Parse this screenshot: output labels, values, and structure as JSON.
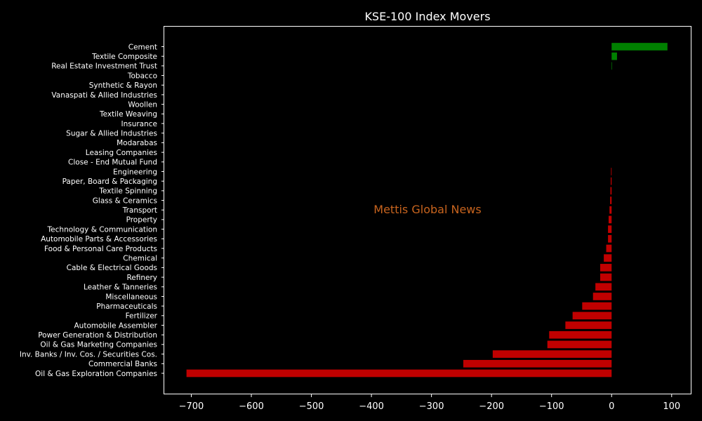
{
  "chart_data": {
    "type": "bar",
    "orientation": "horizontal",
    "title": "KSE-100 Index Movers",
    "xlabel": "",
    "ylabel": "",
    "watermark": "Mettis Global News",
    "xlim": [
      -745,
      133
    ],
    "xticks": [
      -700,
      -600,
      -500,
      -400,
      -300,
      -200,
      -100,
      0,
      100
    ],
    "grid": false,
    "colors": {
      "background": "#000000",
      "text": "#ffffff",
      "positive": "#008000",
      "negative": "#c00000",
      "watermark": "#c8641e"
    },
    "categories": [
      "Cement",
      "Textile Composite",
      "Real Estate Investment Trust",
      "Tobacco",
      "Synthetic & Rayon",
      "Vanaspati & Allied Industries",
      "Woollen",
      "Textile Weaving",
      "Insurance",
      "Sugar & Allied Industries",
      "Modarabas",
      "Leasing Companies",
      "Close - End Mutual Fund",
      "Engineering",
      "Paper, Board & Packaging",
      "Textile Spinning",
      "Glass & Ceramics",
      "Transport",
      "Property",
      "Technology & Communication",
      "Automobile Parts & Accessories",
      "Food & Personal Care Products",
      "Chemical",
      "Cable & Electrical Goods",
      "Refinery",
      "Leather & Tanneries",
      "Miscellaneous",
      "Pharmaceuticals",
      "Fertilizer",
      "Automobile Assembler",
      "Power Generation & Distribution",
      "Oil & Gas Marketing Companies",
      "Inv. Banks / Inv. Cos. / Securities Cos.",
      "Commercial Banks",
      "Oil & Gas Exploration Companies"
    ],
    "values": [
      93,
      9,
      0.8,
      0,
      0,
      0,
      0,
      0,
      0,
      0,
      0,
      0,
      0,
      -1,
      -1.5,
      -2,
      -2.5,
      -3.5,
      -5,
      -6,
      -6,
      -9,
      -13,
      -19,
      -19,
      -27,
      -31,
      -49,
      -65,
      -77,
      -104,
      -107,
      -198,
      -247,
      -708
    ]
  }
}
